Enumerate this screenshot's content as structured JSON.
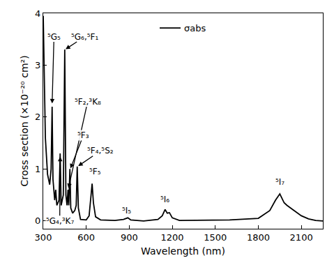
{
  "chart_data": {
    "type": "line",
    "x_label": "Wavelength (nm)",
    "y_label": "Cross section (×10⁻²⁰ cm²)",
    "series": [
      {
        "name": "σabs",
        "color": "#000000",
        "x": [
          300,
          305,
          315,
          330,
          345,
          355,
          362,
          368,
          380,
          387,
          395,
          410,
          418,
          425,
          440,
          450,
          458,
          466,
          473,
          478,
          486,
          492,
          505,
          520,
          530,
          537,
          545,
          560,
          600,
          620,
          630,
          641,
          650,
          665,
          700,
          800,
          860,
          890,
          910,
          1000,
          1100,
          1130,
          1150,
          1165,
          1180,
          1200,
          1250,
          1400,
          1600,
          1800,
          1880,
          1920,
          1950,
          1980,
          2000,
          2050,
          2100,
          2150,
          2200,
          2250
        ],
        "values": [
          3.95,
          3.0,
          1.6,
          0.9,
          0.7,
          1.0,
          2.2,
          0.8,
          0.4,
          0.6,
          0.3,
          0.4,
          1.3,
          0.3,
          0.5,
          3.3,
          0.5,
          0.3,
          0.6,
          0.3,
          1.0,
          0.25,
          0.15,
          0.2,
          0.3,
          1.05,
          0.25,
          0.03,
          0.02,
          0.1,
          0.4,
          0.72,
          0.35,
          0.08,
          0.02,
          0.01,
          0.03,
          0.06,
          0.02,
          0.0,
          0.03,
          0.1,
          0.22,
          0.15,
          0.16,
          0.06,
          0.01,
          0.01,
          0.02,
          0.05,
          0.2,
          0.4,
          0.52,
          0.35,
          0.3,
          0.2,
          0.1,
          0.04,
          0.01,
          0.0
        ]
      }
    ],
    "xlim": [
      300,
      2250
    ],
    "xticks": [
      300,
      600,
      900,
      1200,
      1500,
      1800,
      2100
    ],
    "ylim": [
      -0.15,
      4
    ],
    "yticks": [
      0,
      1,
      2,
      3,
      4
    ],
    "grid": false,
    "legend": "top",
    "annotations": [
      {
        "text": "⁵G₅",
        "x": 375,
        "y": 3.55,
        "arrow_x": 362,
        "arrow_y": 2.25
      },
      {
        "text": "⁵G₆,⁵F₁",
        "x": 590,
        "y": 3.55,
        "arrow_x": 452,
        "arrow_y": 3.3
      },
      {
        "text": "⁵F₂,³K₈",
        "x": 610,
        "y": 2.3,
        "arrow_x": 475,
        "arrow_y": 0.62
      },
      {
        "text": "⁵F₃",
        "x": 580,
        "y": 1.65,
        "arrow_x": 488,
        "arrow_y": 1.0
      },
      {
        "text": "⁵F₄,⁵S₂",
        "x": 700,
        "y": 1.35,
        "arrow_x": 540,
        "arrow_y": 1.05
      },
      {
        "text": "⁵G₄,³K₇",
        "x": 415,
        "y": 0.0,
        "arrow_x": 418,
        "arrow_y": 1.25
      },
      {
        "text": "⁵F₅",
        "x": 660,
        "y": 0.95
      },
      {
        "text": "⁵I₅",
        "x": 880,
        "y": 0.2
      },
      {
        "text": "⁵I₆",
        "x": 1150,
        "y": 0.42
      },
      {
        "text": "⁵I₇",
        "x": 1950,
        "y": 0.75
      }
    ]
  }
}
